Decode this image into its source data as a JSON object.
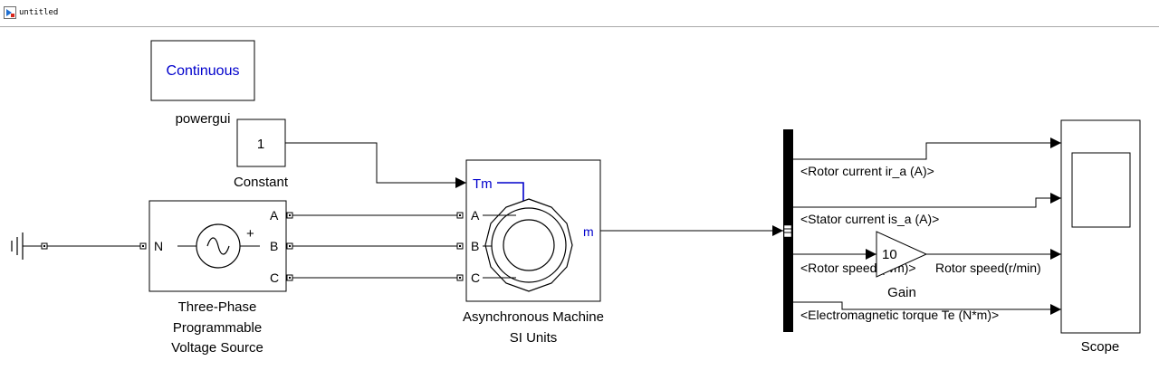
{
  "window": {
    "title": "untitled"
  },
  "colors": {
    "accent_blue": "#0000cc",
    "line": "#000000"
  },
  "blocks": {
    "powergui": {
      "display": "Continuous",
      "label": "powergui"
    },
    "constant": {
      "value": "1",
      "label": "Constant"
    },
    "source": {
      "label_lines": [
        "Three-Phase",
        "Programmable",
        "Voltage Source"
      ],
      "port_n": "N",
      "port_a": "A",
      "port_b": "B",
      "port_c": "C",
      "plus": "+"
    },
    "machine": {
      "label_lines": [
        "Asynchronous Machine",
        "SI Units"
      ],
      "port_tm": "Tm",
      "port_a": "A",
      "port_b": "B",
      "port_c": "C",
      "port_m": "m"
    },
    "gain": {
      "value": "10",
      "label": "Gain"
    },
    "scope": {
      "label": "Scope"
    }
  },
  "signals": {
    "rotor_current": "<Rotor current ir_a (A)>",
    "stator_current": "<Stator current is_a (A)>",
    "rotor_speed": "<Rotor speed (wm)>",
    "rotor_speed_out": "Rotor speed(r/min)",
    "torque": "<Electromagnetic torque Te (N*m)>"
  }
}
